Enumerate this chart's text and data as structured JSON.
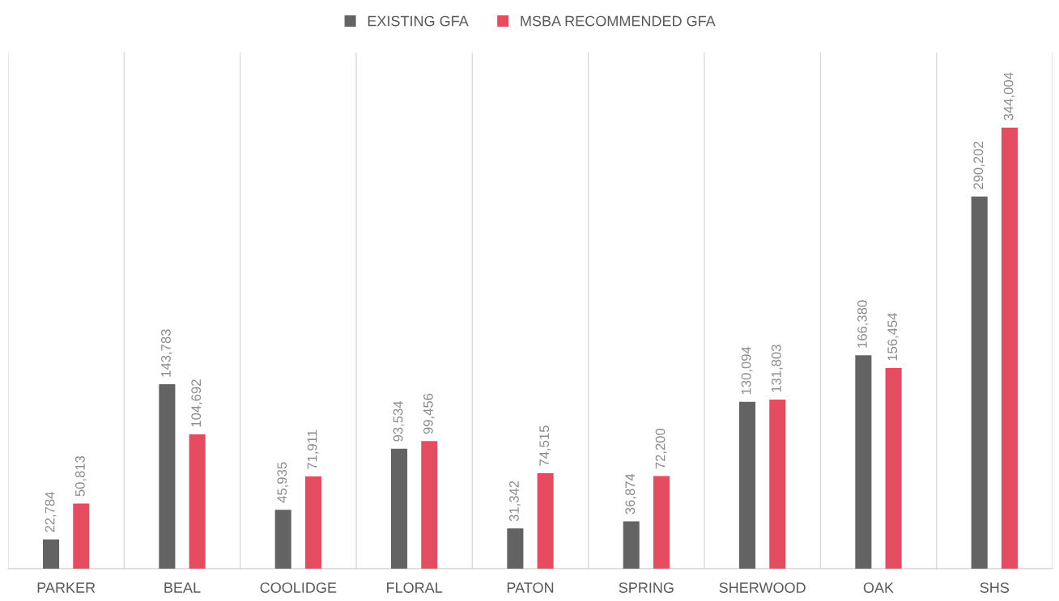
{
  "chart_data": {
    "type": "bar",
    "categories": [
      "PARKER",
      "BEAL",
      "COOLIDGE",
      "FLORAL",
      "PATON",
      "SPRING",
      "SHERWOOD",
      "OAK",
      "SHS"
    ],
    "series": [
      {
        "name": "EXISTING GFA",
        "color": "#636363",
        "values": [
          22784,
          143783,
          45935,
          93534,
          31342,
          36874,
          130094,
          166380,
          290202
        ],
        "value_labels": [
          "22,784",
          "143,783",
          "45,935",
          "93,534",
          "31,342",
          "36,874",
          "130,094",
          "166,380",
          "290,202"
        ]
      },
      {
        "name": "MSBA RECOMMENDED GFA",
        "color": "#e54c60",
        "values": [
          50813,
          104692,
          71911,
          99456,
          74515,
          72200,
          131803,
          156454,
          344004
        ],
        "value_labels": [
          "50,813",
          "104,692",
          "71,911",
          "99,456",
          "74,515",
          "72,200",
          "131,803",
          "156,454",
          "344,004"
        ]
      }
    ],
    "legend": "top",
    "grid": "x",
    "tick_labels": "x"
  }
}
